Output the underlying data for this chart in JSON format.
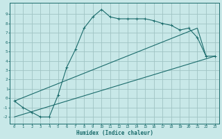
{
  "xlabel": "Humidex (Indice chaleur)",
  "background_color": "#c8e8e8",
  "grid_color": "#a0c4c4",
  "line_color": "#1a6b6b",
  "xlim": [
    -0.5,
    23.5
  ],
  "ylim": [
    -2.7,
    10.2
  ],
  "xticks": [
    0,
    1,
    2,
    3,
    4,
    5,
    6,
    7,
    8,
    9,
    10,
    11,
    12,
    13,
    14,
    15,
    16,
    17,
    18,
    19,
    20,
    21,
    22,
    23
  ],
  "yticks": [
    -2,
    -1,
    0,
    1,
    2,
    3,
    4,
    5,
    6,
    7,
    8,
    9
  ],
  "main_x": [
    0,
    1,
    2,
    3,
    4,
    5,
    6,
    7,
    8,
    9,
    10,
    11,
    12,
    13,
    14,
    15,
    16,
    17,
    18,
    19,
    20,
    21,
    22,
    23
  ],
  "main_y": [
    -0.3,
    -1.0,
    -1.5,
    -2.0,
    -2.0,
    0.3,
    3.3,
    5.2,
    7.5,
    8.7,
    9.5,
    8.7,
    8.5,
    8.5,
    8.5,
    8.5,
    8.3,
    8.0,
    7.8,
    7.3,
    7.5,
    6.5,
    4.5,
    4.5
  ],
  "upper_line_x": [
    0,
    21,
    22
  ],
  "upper_line_y": [
    -0.3,
    7.5,
    4.5
  ],
  "lower_line_x": [
    0,
    23
  ],
  "lower_line_y": [
    -2.0,
    4.5
  ]
}
